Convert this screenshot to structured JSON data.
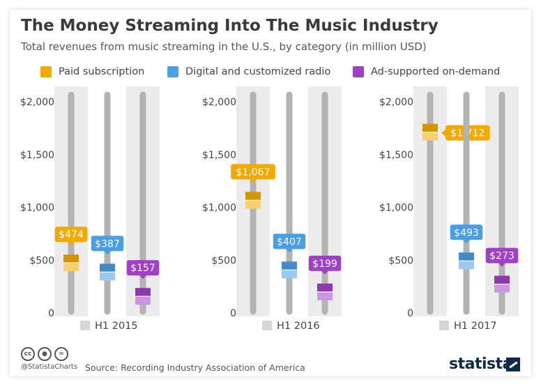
{
  "header": {
    "title": "The Money Streaming Into The Music Industry",
    "subtitle": "Total revenues from music streaming in the U.S., by category (in million USD)"
  },
  "colors": {
    "paid": "#f2a900",
    "radio": "#4a9ee6",
    "ad": "#a040c8",
    "track": "#b3b3b3",
    "panel": "#ececec",
    "axis_text": "#444444"
  },
  "legend": [
    {
      "label": "Paid subscription",
      "color_key": "paid"
    },
    {
      "label": "Digital and customized radio",
      "color_key": "radio"
    },
    {
      "label": "Ad-supported on-demand",
      "color_key": "ad"
    }
  ],
  "chart_data": {
    "type": "bar",
    "title": "The Money Streaming Into The Music Industry",
    "subtitle": "Total revenues from music streaming in the U.S., by category (in million USD)",
    "categories": [
      "H1 2015",
      "H1 2016",
      "H1 2017"
    ],
    "series": [
      {
        "name": "Paid subscription",
        "values": [
          474,
          1067,
          1712
        ]
      },
      {
        "name": "Digital and customized radio",
        "values": [
          387,
          407,
          493
        ]
      },
      {
        "name": "Ad-supported on-demand",
        "values": [
          157,
          199,
          273
        ]
      }
    ],
    "value_labels": [
      [
        "$474",
        "$387",
        "$157"
      ],
      [
        "$1,067",
        "$407",
        "$199"
      ],
      [
        "$1,712",
        "$493",
        "$273"
      ]
    ],
    "ylim": [
      0,
      2000
    ],
    "yticks": [
      0,
      500,
      1000,
      1500,
      2000
    ],
    "ytick_labels": [
      "0",
      "$500",
      "$1,000",
      "$1,500",
      "$2,000"
    ],
    "grid": false,
    "legend_position": "top"
  },
  "footer": {
    "icons": [
      "cc-icon",
      "by-icon",
      "nd-icon"
    ],
    "handle": "@StatistaCharts",
    "source": "Source: Recording Industry Association of America",
    "brand": "statista"
  }
}
